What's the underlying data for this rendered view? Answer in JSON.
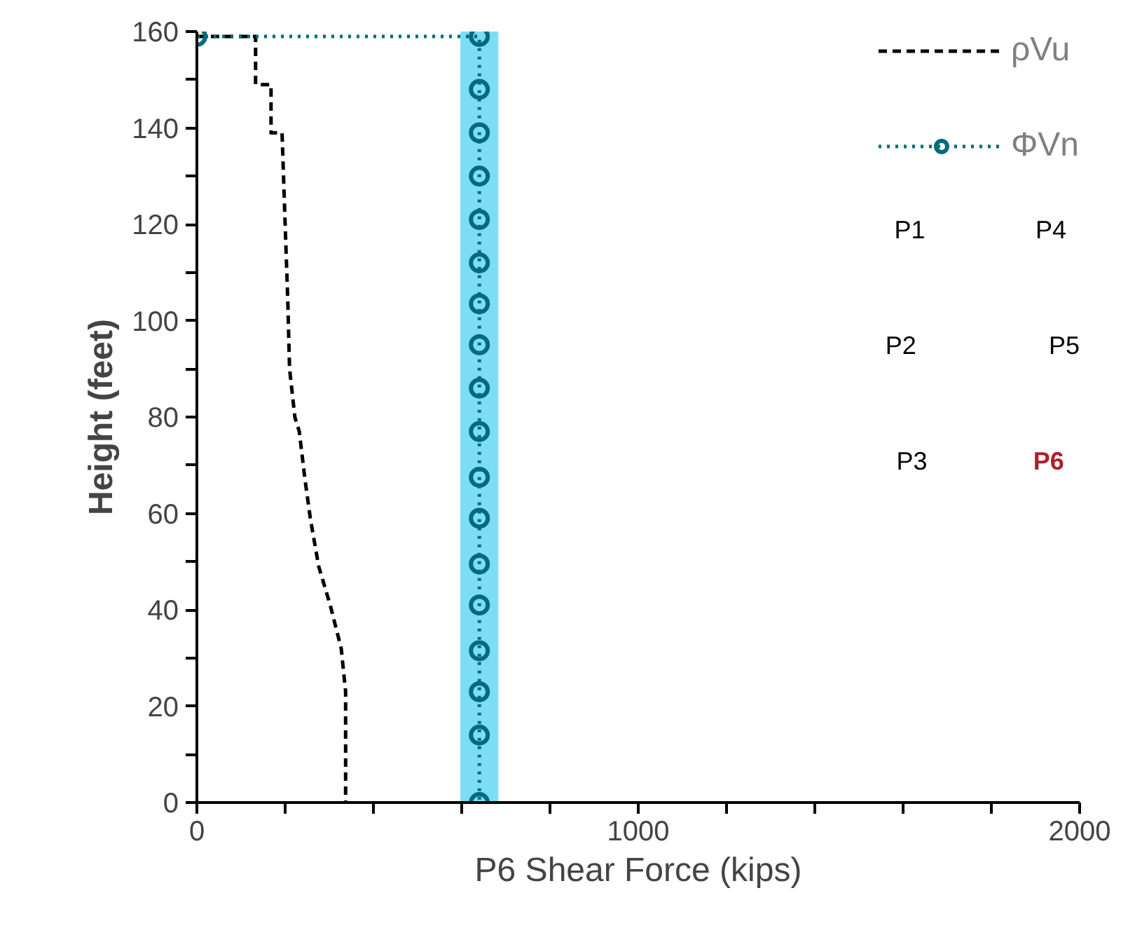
{
  "chart_data": {
    "type": "line",
    "xlabel": "P6 Shear Force (kips)",
    "ylabel": "Height (feet)",
    "xlim": [
      0,
      2000
    ],
    "ylim": [
      0,
      160
    ],
    "xticks": [
      0,
      {
        "value": 200,
        "label": null
      },
      {
        "value": 400,
        "label": null
      },
      {
        "value": 600,
        "label": null
      },
      {
        "value": 800,
        "label": null
      },
      1000,
      {
        "value": 1200,
        "label": null
      },
      {
        "value": 1400,
        "label": null
      },
      {
        "value": 1600,
        "label": null
      },
      {
        "value": 1800,
        "label": null
      },
      2000
    ],
    "yticks": [
      0,
      {
        "value": 10,
        "label": null
      },
      20,
      {
        "value": 30,
        "label": null
      },
      40,
      {
        "value": 50,
        "label": null
      },
      60,
      {
        "value": 70,
        "label": null
      },
      80,
      {
        "value": 90,
        "label": null
      },
      100,
      {
        "value": 110,
        "label": null
      },
      120,
      {
        "value": 130,
        "label": null
      },
      140,
      {
        "value": 150,
        "label": null
      },
      160
    ],
    "grid": false,
    "legend": "top right",
    "series": [
      {
        "name": "ρVu",
        "color": "#000000",
        "line_style": "dashed",
        "marker": "none",
        "x": [
          0,
          133,
          133,
          168,
          168,
          193,
          200,
          206,
          210,
          222,
          232,
          245,
          257,
          276,
          302,
          327,
          337,
          337
        ],
        "values": [
          159,
          159,
          149,
          149,
          139,
          139,
          120,
          104,
          90,
          80,
          77,
          67,
          59,
          49,
          41,
          32,
          23,
          0
        ]
      },
      {
        "name": "ΦVn",
        "color": "#006b7d",
        "line_style": "dotted",
        "marker": "circle",
        "x": [
          0,
          640,
          640,
          640,
          640,
          640,
          640,
          640,
          640,
          640,
          640,
          640,
          640,
          640,
          640,
          640,
          640,
          640,
          640
        ],
        "values": [
          159,
          159,
          148,
          139,
          130,
          121,
          112,
          103.5,
          95,
          86,
          77,
          67.5,
          59,
          49.5,
          41,
          31.5,
          23,
          14,
          0
        ]
      }
    ],
    "bands": [
      {
        "axis": "x",
        "from": 597,
        "to": 683,
        "color": "#7fdcf5"
      }
    ],
    "annotations": [
      "P1",
      "P2",
      "P3",
      "P4",
      "P5",
      "P6"
    ]
  }
}
